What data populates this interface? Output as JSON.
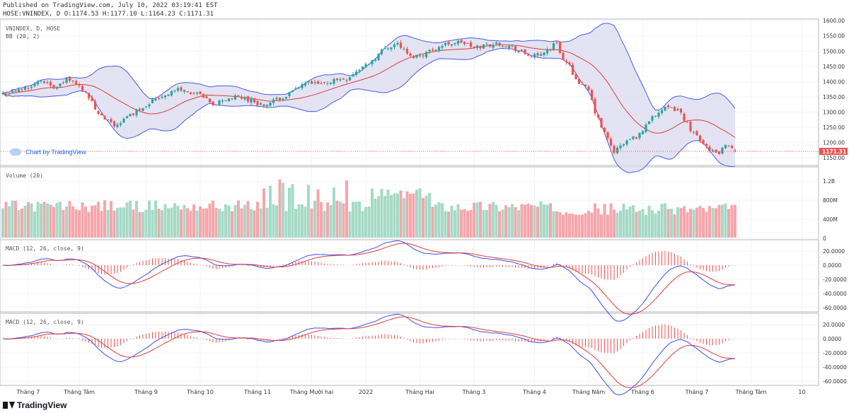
{
  "header": {
    "published": "Published on TradingView.com, July 10, 2022 03:19:41 EST",
    "ohlc": "HOSE:VNINDEX, D O:1174.53 H:1177.10 L:1164.23 C:1171.31"
  },
  "panels": {
    "price": {
      "label1": "VNINDEX, D, HOSE",
      "label2": "BB (20, 2)",
      "ticks": [
        "1600.00",
        "1550.00",
        "1500.00",
        "1450.00",
        "1400.00",
        "1350.00",
        "1300.00",
        "1250.00",
        "1200.00",
        "1150.00"
      ],
      "tick_values": [
        1600,
        1550,
        1500,
        1450,
        1400,
        1350,
        1300,
        1250,
        1200,
        1150
      ],
      "last_price_label": "1171.31",
      "last_price": 1171.31,
      "ylim": [
        1125,
        1605
      ],
      "watermark": "Chart by TradingView"
    },
    "volume": {
      "label": "Volume (20)",
      "ticks": [
        "1.2B",
        "800M",
        "400M",
        "0"
      ],
      "tick_values": [
        1200,
        800,
        400,
        0
      ],
      "ylim": [
        0,
        1500
      ]
    },
    "macd1": {
      "label": "MACD (12, 26, close, 9)",
      "ticks": [
        "20.0000",
        "0.0000",
        "-20.0000",
        "-40.0000",
        "-60.0000"
      ],
      "tick_values": [
        20,
        0,
        -20,
        -40,
        -60
      ],
      "ylim": [
        -66,
        36
      ]
    },
    "macd2": {
      "label": "MACD (12, 26, close, 9)",
      "ticks": [
        "20.0000",
        "0.0000",
        "-20.0000",
        "-40.0000",
        "-60.0000"
      ],
      "tick_values": [
        20,
        0,
        -20,
        -40,
        -60
      ],
      "ylim": [
        -66,
        36
      ]
    }
  },
  "time_axis": {
    "labels": [
      "Tháng 7",
      "Tháng Tám",
      "Tháng 9",
      "Tháng 10",
      "Tháng 11",
      "Tháng Mười hai",
      "2022",
      "Tháng Hai",
      "Tháng 3",
      "Tháng 4",
      "Tháng Năm",
      "Tháng 6",
      "Tháng 7",
      "Tháng Tám",
      "10"
    ],
    "bar_index": [
      8,
      24,
      45,
      62,
      80,
      97,
      114,
      131,
      148,
      167,
      184,
      201,
      218,
      235,
      251
    ]
  },
  "footer": {
    "brand": "TradingView"
  },
  "colors": {
    "up": "#26a69a",
    "down": "#ef5350",
    "vol_up": "#a5dac6",
    "vol_down": "#f5a6ac",
    "bb_fill": "#dcdcf0",
    "bb_band": "#4b5ae6",
    "basis": "#e03a3a",
    "macd": "#3b4ef0",
    "signal": "#e23b3b",
    "hist": "#ef5350",
    "grid": "#f0f3f7",
    "axis_text": "#333333",
    "last_bg": "#ef5350"
  },
  "chart_data": {
    "type": "candlestick",
    "title": "VNINDEX, D, HOSE",
    "series_anchor_closes": {
      "bar_index": [
        0,
        5,
        10,
        14,
        17,
        20,
        26,
        30,
        35,
        38,
        42,
        48,
        55,
        62,
        66,
        69,
        74,
        78,
        82,
        86,
        90,
        95,
        100,
        104,
        108,
        112,
        116,
        120,
        124,
        128,
        132,
        136,
        140,
        144,
        148,
        152,
        156,
        160,
        164,
        168,
        170,
        172,
        174,
        176,
        178,
        180,
        182,
        184,
        186,
        188,
        192,
        196,
        200,
        204,
        208,
        212,
        216,
        220,
        224,
        228,
        232
      ],
      "close": [
        1360,
        1370,
        1395,
        1400,
        1378,
        1410,
        1370,
        1290,
        1255,
        1275,
        1305,
        1345,
        1375,
        1355,
        1320,
        1340,
        1350,
        1340,
        1320,
        1340,
        1360,
        1395,
        1390,
        1405,
        1410,
        1440,
        1470,
        1510,
        1525,
        1480,
        1490,
        1510,
        1525,
        1530,
        1510,
        1520,
        1525,
        1512,
        1490,
        1480,
        1500,
        1510,
        1530,
        1470,
        1450,
        1410,
        1385,
        1370,
        1300,
        1250,
        1170,
        1205,
        1225,
        1290,
        1310,
        1310,
        1245,
        1200,
        1160,
        1195,
        1171
      ]
    },
    "volume_scale": "0–1.2B",
    "last_close": 1171.31,
    "indicators": [
      "BB (20, 2)",
      "Volume (20)",
      "MACD (12, 26, close, 9)",
      "MACD (12, 26, close, 9)"
    ]
  }
}
